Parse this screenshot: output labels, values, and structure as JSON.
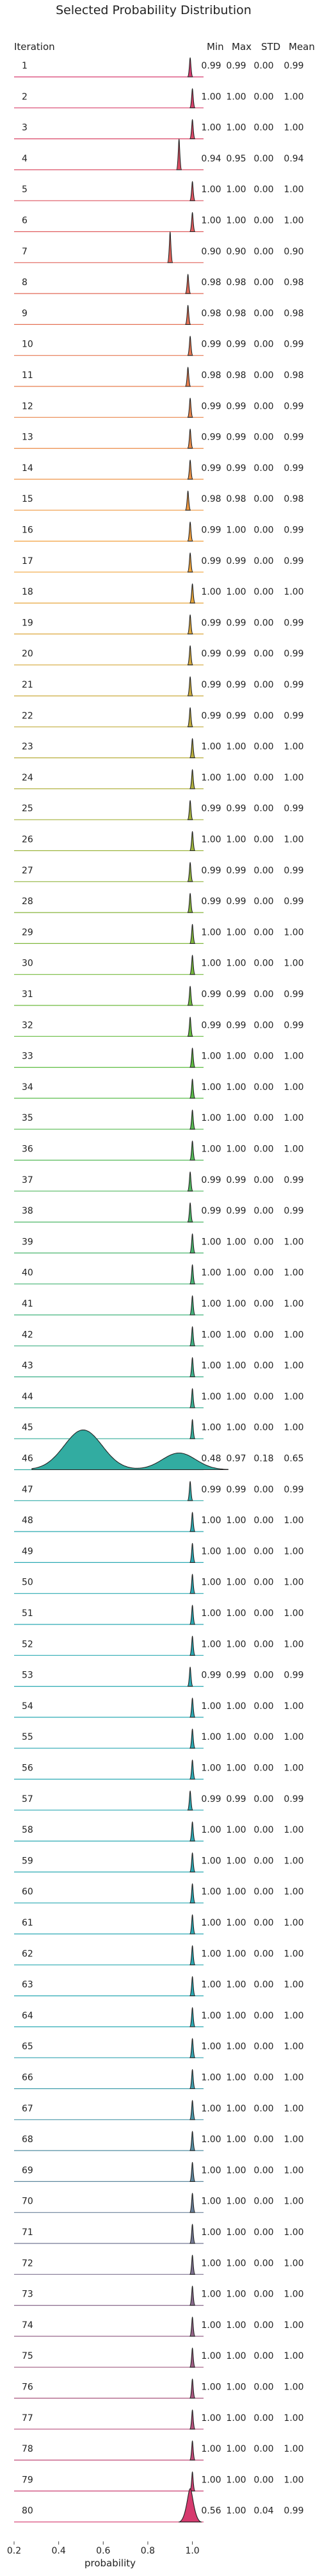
{
  "chart_data": {
    "type": "ridgeline",
    "title": "Selected Probability Distribution",
    "row_header": "Iteration",
    "stat_headers": [
      "Min",
      "Max",
      "STD",
      "Mean"
    ],
    "xlabel": "probability",
    "xlim": [
      0.2,
      1.05
    ],
    "xticks": [
      {
        "value": 0.2,
        "label": "0.2"
      },
      {
        "value": 0.4,
        "label": "0.4"
      },
      {
        "value": 0.6,
        "label": "0.6"
      },
      {
        "value": 0.8,
        "label": "0.8"
      },
      {
        "value": 1.0,
        "label": "1.0"
      }
    ],
    "colors": {
      "start": "#d63a6e",
      "mid": "#f2a43a",
      "green": "#5ebd3e",
      "teal": "#2aa9b3",
      "end": "#d63a6e"
    },
    "rows": [
      {
        "label": "1",
        "min": "0.99",
        "max": "0.99",
        "std": "0.00",
        "mean": "0.99"
      },
      {
        "label": "2",
        "min": "1.00",
        "max": "1.00",
        "std": "0.00",
        "mean": "1.00"
      },
      {
        "label": "3",
        "min": "1.00",
        "max": "1.00",
        "std": "0.00",
        "mean": "1.00"
      },
      {
        "label": "4",
        "min": "0.94",
        "max": "0.95",
        "std": "0.00",
        "mean": "0.94"
      },
      {
        "label": "5",
        "min": "1.00",
        "max": "1.00",
        "std": "0.00",
        "mean": "1.00"
      },
      {
        "label": "6",
        "min": "1.00",
        "max": "1.00",
        "std": "0.00",
        "mean": "1.00"
      },
      {
        "label": "7",
        "min": "0.90",
        "max": "0.90",
        "std": "0.00",
        "mean": "0.90"
      },
      {
        "label": "8",
        "min": "0.98",
        "max": "0.98",
        "std": "0.00",
        "mean": "0.98"
      },
      {
        "label": "9",
        "min": "0.98",
        "max": "0.98",
        "std": "0.00",
        "mean": "0.98"
      },
      {
        "label": "10",
        "min": "0.99",
        "max": "0.99",
        "std": "0.00",
        "mean": "0.99"
      },
      {
        "label": "11",
        "min": "0.98",
        "max": "0.98",
        "std": "0.00",
        "mean": "0.98"
      },
      {
        "label": "12",
        "min": "0.99",
        "max": "0.99",
        "std": "0.00",
        "mean": "0.99"
      },
      {
        "label": "13",
        "min": "0.99",
        "max": "0.99",
        "std": "0.00",
        "mean": "0.99"
      },
      {
        "label": "14",
        "min": "0.99",
        "max": "0.99",
        "std": "0.00",
        "mean": "0.99"
      },
      {
        "label": "15",
        "min": "0.98",
        "max": "0.98",
        "std": "0.00",
        "mean": "0.98"
      },
      {
        "label": "16",
        "min": "0.99",
        "max": "1.00",
        "std": "0.00",
        "mean": "0.99"
      },
      {
        "label": "17",
        "min": "0.99",
        "max": "0.99",
        "std": "0.00",
        "mean": "0.99"
      },
      {
        "label": "18",
        "min": "1.00",
        "max": "1.00",
        "std": "0.00",
        "mean": "1.00"
      },
      {
        "label": "19",
        "min": "0.99",
        "max": "0.99",
        "std": "0.00",
        "mean": "0.99"
      },
      {
        "label": "20",
        "min": "0.99",
        "max": "0.99",
        "std": "0.00",
        "mean": "0.99"
      },
      {
        "label": "21",
        "min": "0.99",
        "max": "0.99",
        "std": "0.00",
        "mean": "0.99"
      },
      {
        "label": "22",
        "min": "0.99",
        "max": "0.99",
        "std": "0.00",
        "mean": "0.99"
      },
      {
        "label": "23",
        "min": "1.00",
        "max": "1.00",
        "std": "0.00",
        "mean": "1.00"
      },
      {
        "label": "24",
        "min": "1.00",
        "max": "1.00",
        "std": "0.00",
        "mean": "1.00"
      },
      {
        "label": "25",
        "min": "0.99",
        "max": "0.99",
        "std": "0.00",
        "mean": "0.99"
      },
      {
        "label": "26",
        "min": "1.00",
        "max": "1.00",
        "std": "0.00",
        "mean": "1.00"
      },
      {
        "label": "27",
        "min": "0.99",
        "max": "0.99",
        "std": "0.00",
        "mean": "0.99"
      },
      {
        "label": "28",
        "min": "0.99",
        "max": "0.99",
        "std": "0.00",
        "mean": "0.99"
      },
      {
        "label": "29",
        "min": "1.00",
        "max": "1.00",
        "std": "0.00",
        "mean": "1.00"
      },
      {
        "label": "30",
        "min": "1.00",
        "max": "1.00",
        "std": "0.00",
        "mean": "1.00"
      },
      {
        "label": "31",
        "min": "0.99",
        "max": "0.99",
        "std": "0.00",
        "mean": "0.99"
      },
      {
        "label": "32",
        "min": "0.99",
        "max": "0.99",
        "std": "0.00",
        "mean": "0.99"
      },
      {
        "label": "33",
        "min": "1.00",
        "max": "1.00",
        "std": "0.00",
        "mean": "1.00"
      },
      {
        "label": "34",
        "min": "1.00",
        "max": "1.00",
        "std": "0.00",
        "mean": "1.00"
      },
      {
        "label": "35",
        "min": "1.00",
        "max": "1.00",
        "std": "0.00",
        "mean": "1.00"
      },
      {
        "label": "36",
        "min": "1.00",
        "max": "1.00",
        "std": "0.00",
        "mean": "1.00"
      },
      {
        "label": "37",
        "min": "0.99",
        "max": "0.99",
        "std": "0.00",
        "mean": "0.99"
      },
      {
        "label": "38",
        "min": "0.99",
        "max": "0.99",
        "std": "0.00",
        "mean": "0.99"
      },
      {
        "label": "39",
        "min": "1.00",
        "max": "1.00",
        "std": "0.00",
        "mean": "1.00"
      },
      {
        "label": "40",
        "min": "1.00",
        "max": "1.00",
        "std": "0.00",
        "mean": "1.00"
      },
      {
        "label": "41",
        "min": "1.00",
        "max": "1.00",
        "std": "0.00",
        "mean": "1.00"
      },
      {
        "label": "42",
        "min": "1.00",
        "max": "1.00",
        "std": "0.00",
        "mean": "1.00"
      },
      {
        "label": "43",
        "min": "1.00",
        "max": "1.00",
        "std": "0.00",
        "mean": "1.00"
      },
      {
        "label": "44",
        "min": "1.00",
        "max": "1.00",
        "std": "0.00",
        "mean": "1.00"
      },
      {
        "label": "45",
        "min": "1.00",
        "max": "1.00",
        "std": "0.00",
        "mean": "1.00"
      },
      {
        "label": "46",
        "min": "0.48",
        "max": "0.97",
        "std": "0.18",
        "mean": "0.65"
      },
      {
        "label": "47",
        "min": "0.99",
        "max": "0.99",
        "std": "0.00",
        "mean": "0.99"
      },
      {
        "label": "48",
        "min": "1.00",
        "max": "1.00",
        "std": "0.00",
        "mean": "1.00"
      },
      {
        "label": "49",
        "min": "1.00",
        "max": "1.00",
        "std": "0.00",
        "mean": "1.00"
      },
      {
        "label": "50",
        "min": "1.00",
        "max": "1.00",
        "std": "0.00",
        "mean": "1.00"
      },
      {
        "label": "51",
        "min": "1.00",
        "max": "1.00",
        "std": "0.00",
        "mean": "1.00"
      },
      {
        "label": "52",
        "min": "1.00",
        "max": "1.00",
        "std": "0.00",
        "mean": "1.00"
      },
      {
        "label": "53",
        "min": "0.99",
        "max": "0.99",
        "std": "0.00",
        "mean": "0.99"
      },
      {
        "label": "54",
        "min": "1.00",
        "max": "1.00",
        "std": "0.00",
        "mean": "1.00"
      },
      {
        "label": "55",
        "min": "1.00",
        "max": "1.00",
        "std": "0.00",
        "mean": "1.00"
      },
      {
        "label": "56",
        "min": "1.00",
        "max": "1.00",
        "std": "0.00",
        "mean": "1.00"
      },
      {
        "label": "57",
        "min": "0.99",
        "max": "0.99",
        "std": "0.00",
        "mean": "0.99"
      },
      {
        "label": "58",
        "min": "1.00",
        "max": "1.00",
        "std": "0.00",
        "mean": "1.00"
      },
      {
        "label": "59",
        "min": "1.00",
        "max": "1.00",
        "std": "0.00",
        "mean": "1.00"
      },
      {
        "label": "60",
        "min": "1.00",
        "max": "1.00",
        "std": "0.00",
        "mean": "1.00"
      },
      {
        "label": "61",
        "min": "1.00",
        "max": "1.00",
        "std": "0.00",
        "mean": "1.00"
      },
      {
        "label": "62",
        "min": "1.00",
        "max": "1.00",
        "std": "0.00",
        "mean": "1.00"
      },
      {
        "label": "63",
        "min": "1.00",
        "max": "1.00",
        "std": "0.00",
        "mean": "1.00"
      },
      {
        "label": "64",
        "min": "1.00",
        "max": "1.00",
        "std": "0.00",
        "mean": "1.00"
      },
      {
        "label": "65",
        "min": "1.00",
        "max": "1.00",
        "std": "0.00",
        "mean": "1.00"
      },
      {
        "label": "66",
        "min": "1.00",
        "max": "1.00",
        "std": "0.00",
        "mean": "1.00"
      },
      {
        "label": "67",
        "min": "1.00",
        "max": "1.00",
        "std": "0.00",
        "mean": "1.00"
      },
      {
        "label": "68",
        "min": "1.00",
        "max": "1.00",
        "std": "0.00",
        "mean": "1.00"
      },
      {
        "label": "69",
        "min": "1.00",
        "max": "1.00",
        "std": "0.00",
        "mean": "1.00"
      },
      {
        "label": "70",
        "min": "1.00",
        "max": "1.00",
        "std": "0.00",
        "mean": "1.00"
      },
      {
        "label": "71",
        "min": "1.00",
        "max": "1.00",
        "std": "0.00",
        "mean": "1.00"
      },
      {
        "label": "72",
        "min": "1.00",
        "max": "1.00",
        "std": "0.00",
        "mean": "1.00"
      },
      {
        "label": "73",
        "min": "1.00",
        "max": "1.00",
        "std": "0.00",
        "mean": "1.00"
      },
      {
        "label": "74",
        "min": "1.00",
        "max": "1.00",
        "std": "0.00",
        "mean": "1.00"
      },
      {
        "label": "75",
        "min": "1.00",
        "max": "1.00",
        "std": "0.00",
        "mean": "1.00"
      },
      {
        "label": "76",
        "min": "1.00",
        "max": "1.00",
        "std": "0.00",
        "mean": "1.00"
      },
      {
        "label": "77",
        "min": "1.00",
        "max": "1.00",
        "std": "0.00",
        "mean": "1.00"
      },
      {
        "label": "78",
        "min": "1.00",
        "max": "1.00",
        "std": "0.00",
        "mean": "1.00"
      },
      {
        "label": "79",
        "min": "1.00",
        "max": "1.00",
        "std": "0.00",
        "mean": "1.00"
      },
      {
        "label": "80",
        "min": "0.56",
        "max": "1.00",
        "std": "0.04",
        "mean": "0.99"
      }
    ]
  }
}
